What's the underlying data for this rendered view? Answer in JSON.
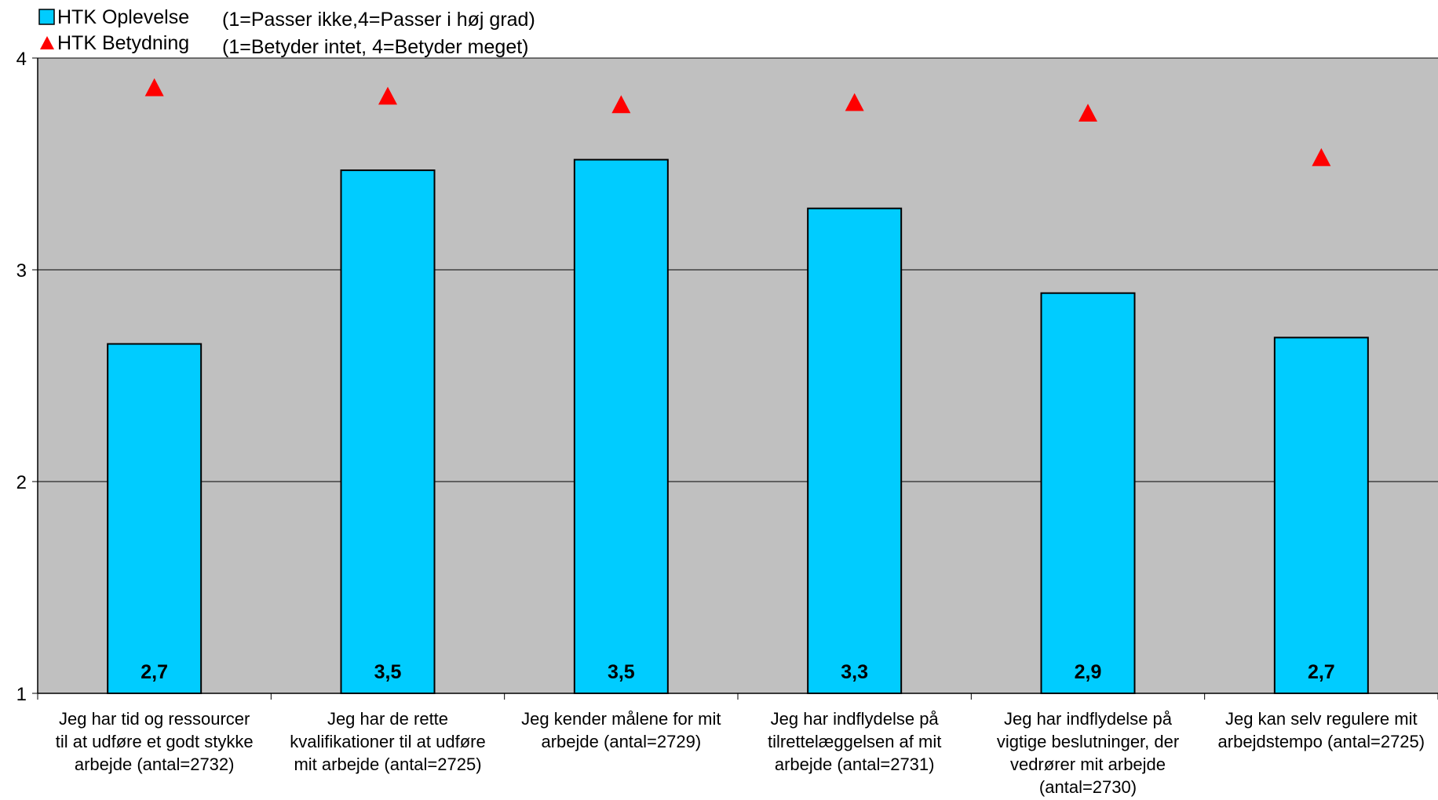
{
  "chart_data": {
    "type": "bar",
    "categories": [
      "Jeg har tid og ressourcer til at udføre et godt stykke arbejde (antal=2732)",
      "Jeg har de rette kvalifikationer til at udføre mit arbejde (antal=2725)",
      "Jeg kender målene for mit arbejde (antal=2729)",
      "Jeg har indflydelse på tilrettelæggelsen af mit arbejde (antal=2731)",
      "Jeg har indflydelse på vigtige beslutninger, der vedrører mit arbejde (antal=2730)",
      "Jeg kan selv regulere mit arbejdstempo (antal=2725)"
    ],
    "category_lines": [
      [
        "Jeg har tid og ressourcer",
        "til at udføre et godt stykke",
        "arbejde (antal=2732)"
      ],
      [
        "Jeg har de rette",
        "kvalifikationer til at udføre",
        "mit arbejde (antal=2725)"
      ],
      [
        "Jeg kender målene for mit",
        "arbejde (antal=2729)"
      ],
      [
        "Jeg har indflydelse på",
        "tilrettelæggelsen af mit",
        "arbejde (antal=2731)"
      ],
      [
        "Jeg har indflydelse på",
        "vigtige beslutninger, der",
        "vedrører mit arbejde",
        "(antal=2730)"
      ],
      [
        "Jeg kan selv regulere mit",
        "arbejdstempo (antal=2725)"
      ]
    ],
    "series": [
      {
        "name": "HTK Oplevelse",
        "kind": "bar",
        "color": "#00CCFF",
        "values": [
          2.65,
          3.47,
          3.52,
          3.29,
          2.89,
          2.68
        ],
        "labels": [
          "2,7",
          "3,5",
          "3,5",
          "3,3",
          "2,9",
          "2,7"
        ]
      },
      {
        "name": "HTK Betydning",
        "kind": "triangle-marker",
        "color": "#FF0000",
        "values": [
          3.86,
          3.82,
          3.78,
          3.79,
          3.74,
          3.53
        ]
      }
    ],
    "notes": [
      "(1=Passer ikke,4=Passer i høj grad)",
      "(1=Betyder intet, 4=Betyder meget)"
    ],
    "yticks": [
      "1",
      "2",
      "3",
      "4"
    ],
    "ylim": [
      1,
      4
    ],
    "grid": true,
    "plot_background": "#C0C0C0",
    "legend_position": "top-left"
  }
}
